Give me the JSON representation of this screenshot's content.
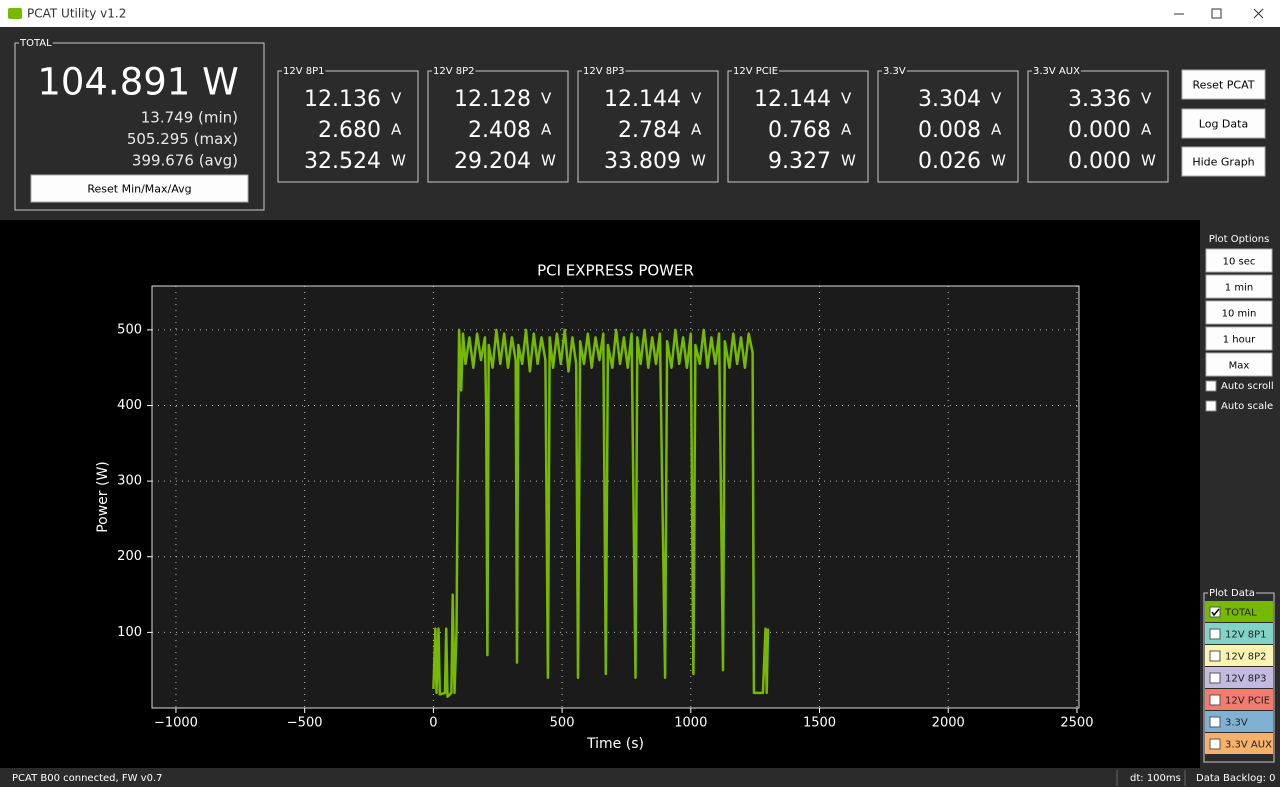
{
  "window": {
    "title": "PCAT Utility v1.2"
  },
  "total": {
    "label": "TOTAL",
    "power": "104.891 W",
    "min": "13.749 (min)",
    "max": "505.295 (max)",
    "avg": "399.676 (avg)",
    "reset_button": "Reset Min/Max/Avg"
  },
  "units": [
    "V",
    "A",
    "W"
  ],
  "rails": [
    {
      "label": "12V 8P1",
      "voltage": "12.136",
      "current": "2.680",
      "power": "32.524"
    },
    {
      "label": "12V 8P2",
      "voltage": "12.128",
      "current": "2.408",
      "power": "29.204"
    },
    {
      "label": "12V 8P3",
      "voltage": "12.144",
      "current": "2.784",
      "power": "33.809"
    },
    {
      "label": "12V PCIE",
      "voltage": "12.144",
      "current": "0.768",
      "power": "9.327"
    },
    {
      "label": "3.3V",
      "voltage": "3.304",
      "current": "0.008",
      "power": "0.026"
    },
    {
      "label": "3.3V AUX",
      "voltage": "3.336",
      "current": "0.000",
      "power": "0.000"
    }
  ],
  "buttons": [
    "Reset PCAT",
    "Log Data",
    "Hide Graph"
  ],
  "plot_options": {
    "title": "Plot Options",
    "buttons": [
      "10 sec",
      "1 min",
      "10 min",
      "1 hour",
      "Max"
    ],
    "checkboxes": [
      {
        "label": "Auto scroll",
        "checked": false
      },
      {
        "label": "Auto scale",
        "checked": false
      }
    ]
  },
  "plot_data": {
    "title": "Plot Data",
    "items": [
      {
        "label": "TOTAL",
        "checked": true,
        "color": "#76b900"
      },
      {
        "label": "12V 8P1",
        "checked": false,
        "color": "#80d4c6"
      },
      {
        "label": "12V 8P2",
        "checked": false,
        "color": "#fbf4b0"
      },
      {
        "label": "12V 8P3",
        "checked": false,
        "color": "#c4b9de"
      },
      {
        "label": "12V PCIE",
        "checked": false,
        "color": "#f37c6f"
      },
      {
        "label": "3.3V",
        "checked": false,
        "color": "#7fb1d4"
      },
      {
        "label": "3.3V AUX",
        "checked": false,
        "color": "#f7b16b"
      }
    ]
  },
  "status": {
    "connection": "PCAT B00 connected, FW v0.7",
    "dt": "dt: 100ms",
    "backlog": "Data Backlog: 0"
  },
  "chart_data": {
    "type": "line",
    "title": "PCI EXPRESS POWER",
    "x_label": "Time (s)",
    "y_label": "Power (W)",
    "xlim": [
      -1093,
      2508
    ],
    "ylim": [
      0,
      558
    ],
    "xticks": [
      {
        "value": -1000,
        "label": "−1000"
      },
      {
        "value": -500,
        "label": "−500"
      },
      0,
      500,
      1000,
      1500,
      2000,
      2500
    ],
    "yticks": [
      100,
      200,
      300,
      400,
      500
    ],
    "grid": true,
    "x": [
      0,
      8,
      12,
      20,
      25,
      45,
      50,
      55,
      70,
      75,
      82,
      90,
      95,
      100,
      108,
      115,
      125,
      140,
      155,
      170,
      185,
      200,
      205,
      210,
      215,
      230,
      245,
      260,
      275,
      290,
      305,
      320,
      325,
      330,
      345,
      360,
      375,
      390,
      405,
      420,
      435,
      445,
      452,
      465,
      480,
      495,
      510,
      525,
      540,
      555,
      562,
      570,
      585,
      600,
      615,
      630,
      645,
      660,
      670,
      678,
      695,
      710,
      725,
      740,
      755,
      770,
      785,
      792,
      805,
      820,
      835,
      850,
      865,
      880,
      900,
      908,
      925,
      940,
      955,
      970,
      985,
      1000,
      1010,
      1018,
      1035,
      1050,
      1065,
      1080,
      1095,
      1110,
      1125,
      1132,
      1150,
      1165,
      1180,
      1195,
      1210,
      1225,
      1240,
      1245,
      1260,
      1280,
      1290,
      1295,
      1300
    ],
    "series": [
      {
        "name": "TOTAL",
        "color": "#76b900",
        "values": [
          25,
          105,
          20,
          105,
          18,
          20,
          105,
          15,
          20,
          150,
          20,
          100,
          330,
          500,
          420,
          495,
          455,
          490,
          450,
          495,
          460,
          490,
          400,
          70,
          480,
          450,
          500,
          455,
          495,
          450,
          490,
          460,
          60,
          480,
          455,
          500,
          445,
          495,
          455,
          490,
          460,
          40,
          490,
          450,
          495,
          455,
          500,
          445,
          490,
          455,
          40,
          485,
          455,
          495,
          450,
          490,
          460,
          495,
          45,
          480,
          450,
          500,
          455,
          490,
          450,
          495,
          40,
          490,
          455,
          500,
          450,
          490,
          455,
          495,
          40,
          485,
          450,
          500,
          455,
          490,
          450,
          495,
          45,
          480,
          455,
          500,
          450,
          490,
          455,
          495,
          50,
          485,
          450,
          495,
          455,
          490,
          450,
          495,
          470,
          20,
          20,
          20,
          105,
          20,
          105
        ]
      }
    ]
  }
}
